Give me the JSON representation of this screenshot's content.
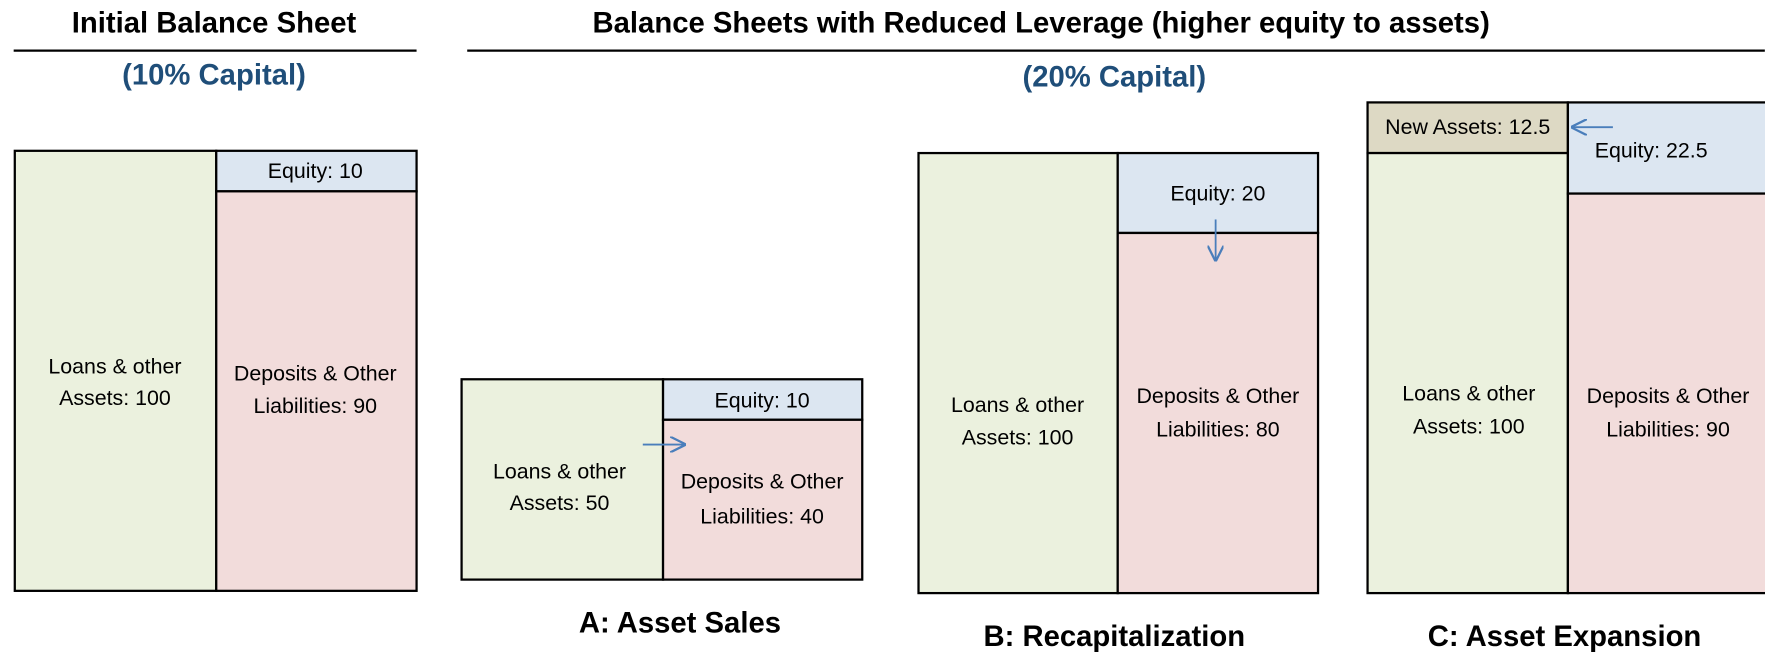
{
  "header": {
    "left_title": "Initial Balance Sheet",
    "left_subtitle": "(10% Capital)",
    "right_title": "Balance Sheets with Reduced Leverage (higher equity to assets)",
    "right_subtitle": "(20% Capital)"
  },
  "sheets": [
    {
      "assets": [
        "Loans & other",
        "Assets: 100"
      ],
      "equity": "Equity: 10",
      "liabilities": [
        "Deposits & Other",
        "Liabilities: 90"
      ]
    },
    {
      "caption": "A: Asset Sales",
      "assets": [
        "Loans & other",
        "Assets: 50"
      ],
      "equity": "Equity: 10",
      "liabilities": [
        "Deposits & Other",
        "Liabilities: 40"
      ]
    },
    {
      "caption": "B: Recapitalization",
      "assets": [
        "Loans & other",
        "Assets: 100"
      ],
      "equity": "Equity: 20",
      "liabilities": [
        "Deposits & Other",
        "Liabilities: 80"
      ]
    },
    {
      "caption": "C: Asset Expansion",
      "new_assets": "New Assets: 12.5",
      "assets": [
        "Loans & other",
        "Assets: 100"
      ],
      "equity": "Equity: 22.5",
      "liabilities": [
        "Deposits & Other",
        "Liabilities: 90"
      ]
    }
  ]
}
